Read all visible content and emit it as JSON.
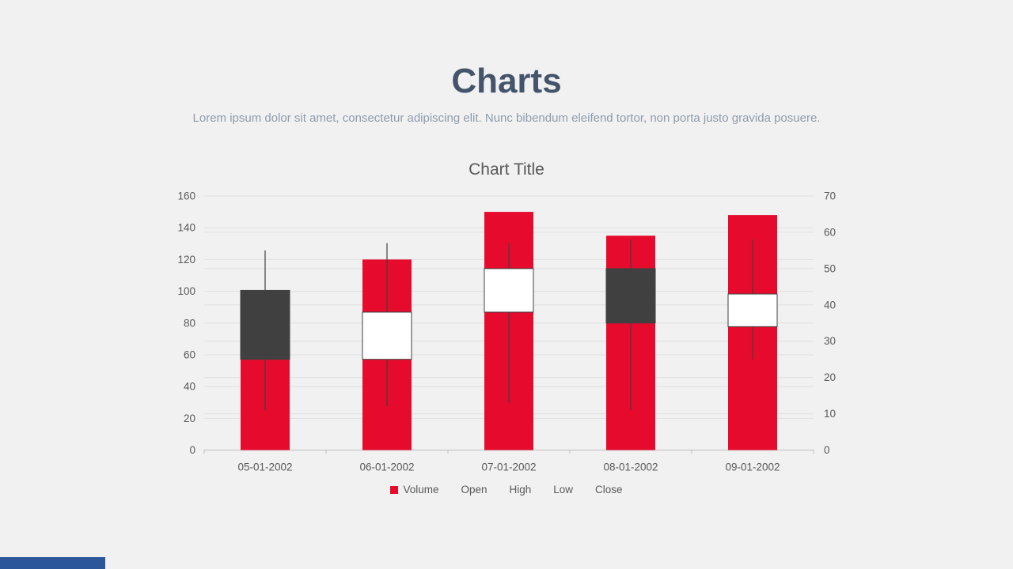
{
  "header": {
    "title": "Charts",
    "subtitle": "Lorem ipsum dolor sit amet, consectetur adipiscing elit. Nunc bibendum eleifend tortor, non porta justo gravida posuere."
  },
  "footer": {
    "accent_color": "#2b579a"
  },
  "chart_data": {
    "type": "bar",
    "subtype": "volume-open-high-low-close stock chart (volume columns + candlesticks)",
    "title": "Chart Title",
    "categories": [
      "05-01-2002",
      "06-01-2002",
      "07-01-2002",
      "08-01-2002",
      "09-01-2002"
    ],
    "series": [
      {
        "name": "Volume",
        "axis": "left",
        "values": [
          100,
          120,
          150,
          135,
          148
        ]
      },
      {
        "name": "Open",
        "axis": "right",
        "values": [
          44,
          25,
          38,
          50,
          34
        ]
      },
      {
        "name": "High",
        "axis": "right",
        "values": [
          55,
          57,
          57,
          58,
          58
        ]
      },
      {
        "name": "Low",
        "axis": "right",
        "values": [
          11,
          12,
          13,
          11,
          25
        ]
      },
      {
        "name": "Close",
        "axis": "right",
        "values": [
          25,
          38,
          50,
          35,
          43
        ]
      }
    ],
    "left_axis": {
      "min": 0,
      "max": 160,
      "step": 20,
      "tick_labels": [
        "0",
        "20",
        "40",
        "60",
        "80",
        "100",
        "120",
        "140",
        "160"
      ]
    },
    "right_axis": {
      "min": 0,
      "max": 70,
      "step": 10,
      "tick_labels": [
        "0",
        "10",
        "20",
        "30",
        "40",
        "50",
        "60",
        "70"
      ]
    },
    "legend": [
      "Volume",
      "Open",
      "High",
      "Low",
      "Close"
    ],
    "legend_position": "bottom",
    "grid": true,
    "colors": {
      "volume": "#e60b2c",
      "up_fill": "#ffffff",
      "down_fill": "#404040",
      "candle_stroke": "#404040",
      "wick": "#404040",
      "grid": "#e0e0e0",
      "axis_line": "#c6c6c6",
      "text": "#595959"
    }
  }
}
